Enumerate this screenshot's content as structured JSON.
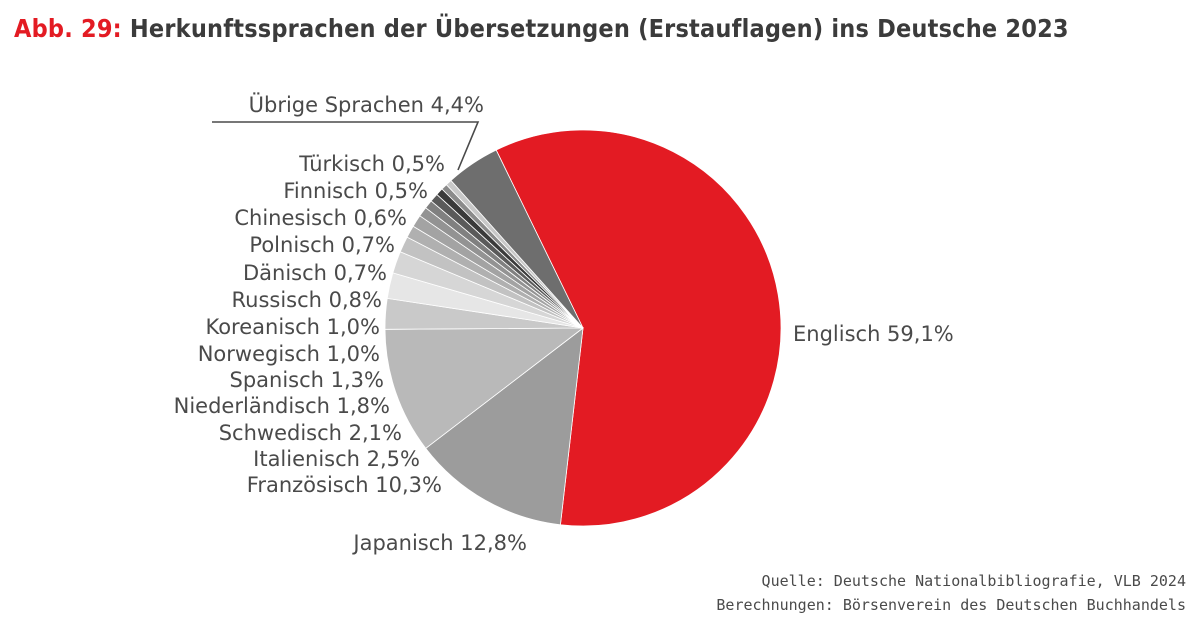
{
  "title": {
    "prefix": "Abb. 29:",
    "text": "Herkunftssprachen der Übersetzungen (Erstauflagen) ins Deutsche 2023"
  },
  "chart_data": {
    "type": "pie",
    "unit": "%",
    "slices": [
      {
        "name": "Englisch",
        "label": "Englisch 59,1%",
        "value": 59.1,
        "color": "#e31b23"
      },
      {
        "name": "Japanisch",
        "label": "Japanisch 12,8%",
        "value": 12.8,
        "color": "#9c9c9c"
      },
      {
        "name": "Französisch",
        "label": "Französisch 10,3%",
        "value": 10.3,
        "color": "#b9b9b9"
      },
      {
        "name": "Italienisch",
        "label": "Italienisch 2,5%",
        "value": 2.5,
        "color": "#c9c9c9"
      },
      {
        "name": "Schwedisch",
        "label": "Schwedisch 2,1%",
        "value": 2.1,
        "color": "#e6e6e6"
      },
      {
        "name": "Niederländisch",
        "label": "Niederländisch 1,8%",
        "value": 1.8,
        "color": "#d6d6d6"
      },
      {
        "name": "Spanisch",
        "label": "Spanisch  1,3%",
        "value": 1.3,
        "color": "#c2c2c2"
      },
      {
        "name": "Norwegisch",
        "label": "Norwegisch 1,0%",
        "value": 1.0,
        "color": "#b0b0b0"
      },
      {
        "name": "Koreanisch",
        "label": "Koreanisch 1,0%",
        "value": 1.0,
        "color": "#a3a3a3"
      },
      {
        "name": "Russisch",
        "label": "Russisch 0,8%",
        "value": 0.8,
        "color": "#939393"
      },
      {
        "name": "Dänisch",
        "label": "Dänisch 0,7%",
        "value": 0.7,
        "color": "#808080"
      },
      {
        "name": "Polnisch",
        "label": "Polnisch 0,7%",
        "value": 0.7,
        "color": "#5a5a5a"
      },
      {
        "name": "Chinesisch",
        "label": "Chinesisch 0,6%",
        "value": 0.6,
        "color": "#3a3a3a"
      },
      {
        "name": "Finnisch",
        "label": "Finnisch 0,5%",
        "value": 0.5,
        "color": "#8a8a8a"
      },
      {
        "name": "Türkisch",
        "label": "Türkisch 0,5%",
        "value": 0.5,
        "color": "#c8c8c8"
      },
      {
        "name": "Übrige Sprachen",
        "label": "Übrige Sprachen 4,4%",
        "value": 4.4,
        "color": "#6e6e6e"
      }
    ]
  },
  "source": {
    "line1": "Quelle: Deutsche Nationalbibliografie, VLB 2024",
    "line2": "Berechnungen: Börsenverein des Deutschen Buchhandels"
  }
}
